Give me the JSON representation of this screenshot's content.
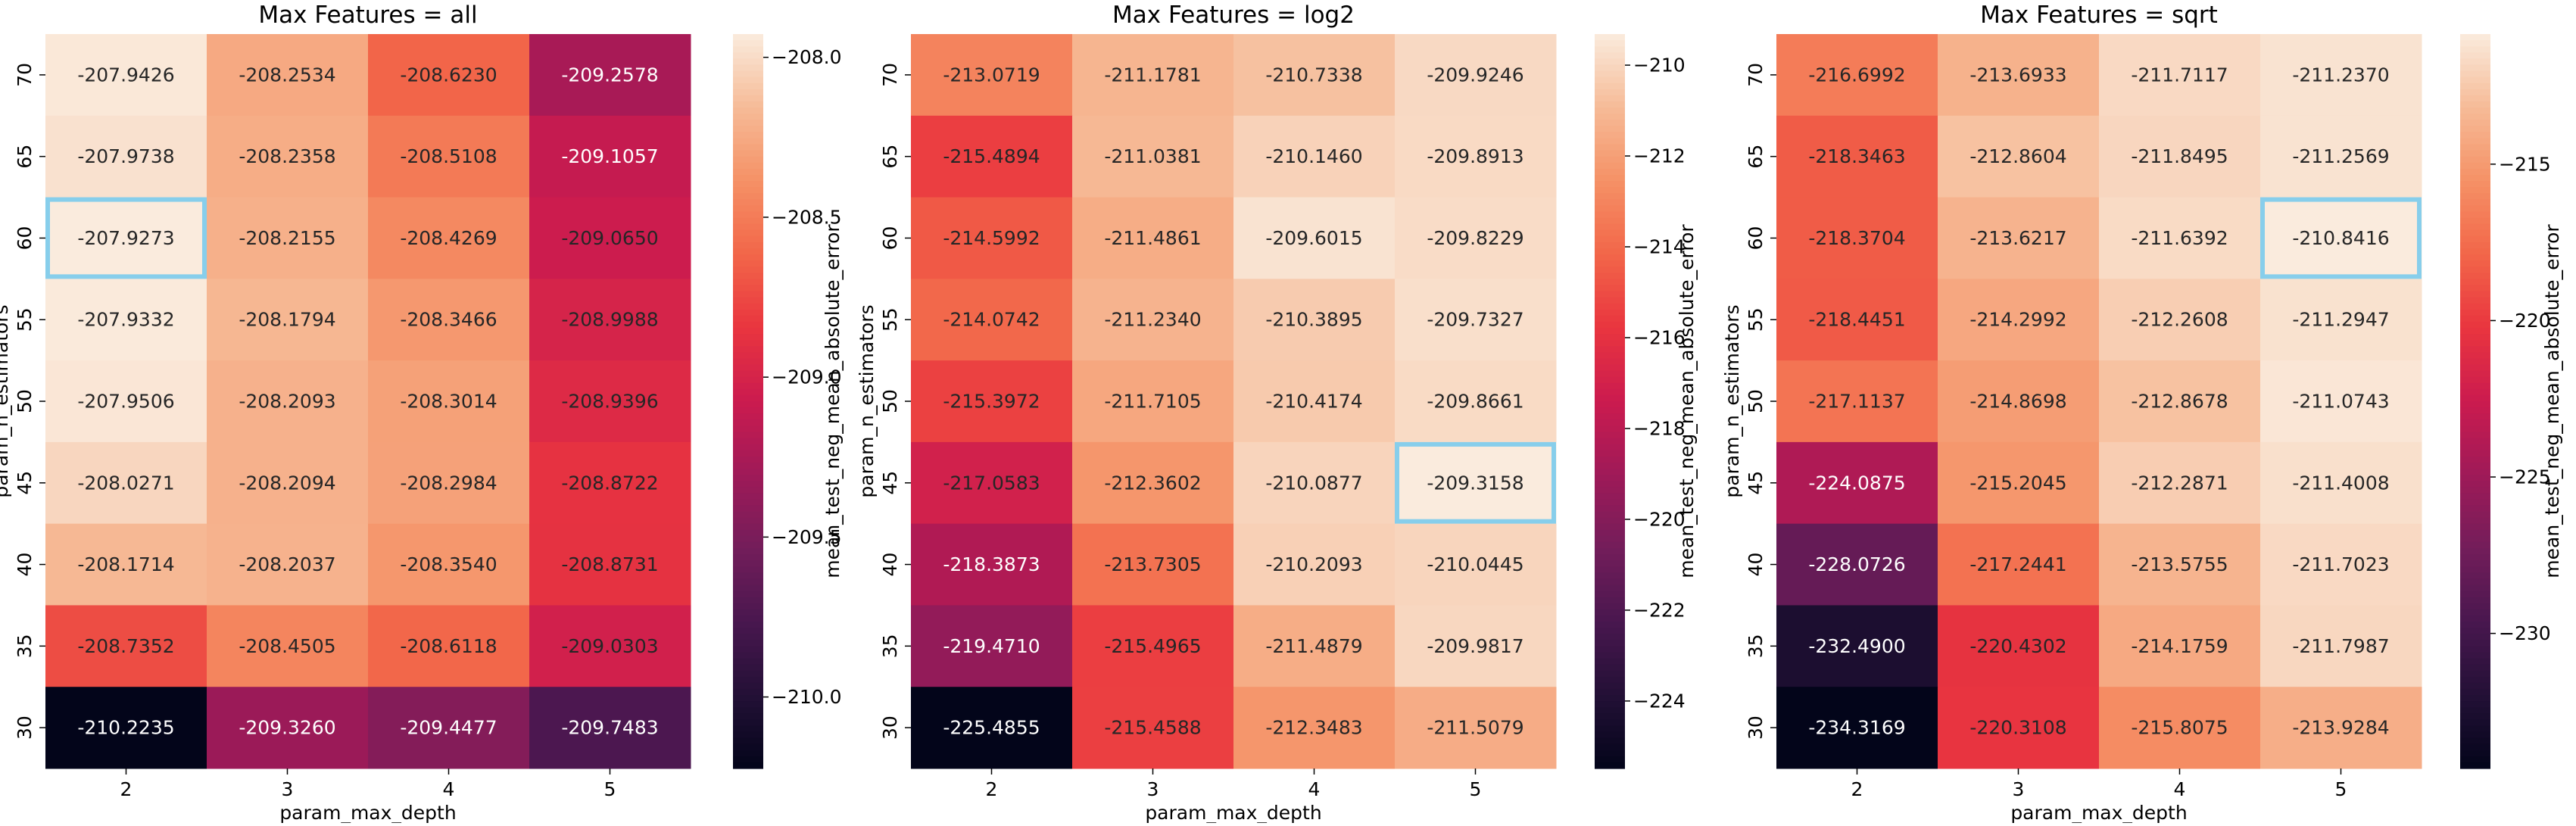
{
  "chart_data": [
    {
      "type": "heatmap",
      "title": "Max Features = all",
      "xlabel": "param_max_depth",
      "ylabel": "param_n_estimators",
      "colorbar_label": "mean_test_neg_mean_absolute_error",
      "x_categories": [
        "2",
        "3",
        "4",
        "5"
      ],
      "y_categories": [
        "70",
        "65",
        "60",
        "55",
        "50",
        "45",
        "40",
        "35",
        "30"
      ],
      "values": [
        [
          -207.9426,
          -208.2534,
          -208.623,
          -209.2578
        ],
        [
          -207.9738,
          -208.2358,
          -208.5108,
          -209.1057
        ],
        [
          -207.9273,
          -208.2155,
          -208.4269,
          -209.065
        ],
        [
          -207.9332,
          -208.1794,
          -208.3466,
          -208.9988
        ],
        [
          -207.9506,
          -208.2093,
          -208.3014,
          -208.9396
        ],
        [
          -208.0271,
          -208.2094,
          -208.2984,
          -208.8722
        ],
        [
          -208.1714,
          -208.2037,
          -208.354,
          -208.8731
        ],
        [
          -208.7352,
          -208.4505,
          -208.6118,
          -209.0303
        ],
        [
          -210.2235,
          -209.326,
          -209.4477,
          -209.7483
        ]
      ],
      "value_labels": [
        [
          "-207.9426",
          "-208.2534",
          "-208.6230",
          "-209.2578"
        ],
        [
          "-207.9738",
          "-208.2358",
          "-208.5108",
          "-209.1057"
        ],
        [
          "-207.9273",
          "-208.2155",
          "-208.4269",
          "-209.0650"
        ],
        [
          "-207.9332",
          "-208.1794",
          "-208.3466",
          "-208.9988"
        ],
        [
          "-207.9506",
          "-208.2093",
          "-208.3014",
          "-208.9396"
        ],
        [
          "-208.0271",
          "-208.2094",
          "-208.2984",
          "-208.8722"
        ],
        [
          "-208.1714",
          "-208.2037",
          "-208.3540",
          "-208.8731"
        ],
        [
          "-208.7352",
          "-208.4505",
          "-208.6118",
          "-209.0303"
        ],
        [
          "-210.2235",
          "-209.3260",
          "-209.4477",
          "-209.7483"
        ]
      ],
      "color_range": [
        -210.2235,
        -207.9273
      ],
      "colorbar_ticks": [
        -208.0,
        -208.5,
        -209.0,
        -209.5,
        -210.0
      ],
      "colorbar_tick_labels": [
        "−208.0",
        "−208.5",
        "−209.0",
        "−209.5",
        "−210.0"
      ],
      "highlight": {
        "row": 2,
        "col": 0,
        "color": "#87ceeb"
      }
    },
    {
      "type": "heatmap",
      "title": "Max Features = log2",
      "xlabel": "param_max_depth",
      "ylabel": "param_n_estimators",
      "colorbar_label": "mean_test_neg_mean_absolute_error",
      "x_categories": [
        "2",
        "3",
        "4",
        "5"
      ],
      "y_categories": [
        "70",
        "65",
        "60",
        "55",
        "50",
        "45",
        "40",
        "35",
        "30"
      ],
      "values": [
        [
          -213.0719,
          -211.1781,
          -210.7338,
          -209.9246
        ],
        [
          -215.4894,
          -211.0381,
          -210.146,
          -209.8913
        ],
        [
          -214.5992,
          -211.4861,
          -209.6015,
          -209.8229
        ],
        [
          -214.0742,
          -211.234,
          -210.3895,
          -209.7327
        ],
        [
          -215.3972,
          -211.7105,
          -210.4174,
          -209.8661
        ],
        [
          -217.0583,
          -212.3602,
          -210.0877,
          -209.3158
        ],
        [
          -218.3873,
          -213.7305,
          -210.2093,
          -210.0445
        ],
        [
          -219.471,
          -215.4965,
          -211.4879,
          -209.9817
        ],
        [
          -225.4855,
          -215.4588,
          -212.3483,
          -211.5079
        ]
      ],
      "value_labels": [
        [
          "-213.0719",
          "-211.1781",
          "-210.7338",
          "-209.9246"
        ],
        [
          "-215.4894",
          "-211.0381",
          "-210.1460",
          "-209.8913"
        ],
        [
          "-214.5992",
          "-211.4861",
          "-209.6015",
          "-209.8229"
        ],
        [
          "-214.0742",
          "-211.2340",
          "-210.3895",
          "-209.7327"
        ],
        [
          "-215.3972",
          "-211.7105",
          "-210.4174",
          "-209.8661"
        ],
        [
          "-217.0583",
          "-212.3602",
          "-210.0877",
          "-209.3158"
        ],
        [
          "-218.3873",
          "-213.7305",
          "-210.2093",
          "-210.0445"
        ],
        [
          "-219.4710",
          "-215.4965",
          "-211.4879",
          "-209.9817"
        ],
        [
          "-225.4855",
          "-215.4588",
          "-212.3483",
          "-211.5079"
        ]
      ],
      "color_range": [
        -225.4855,
        -209.3158
      ],
      "colorbar_ticks": [
        -210,
        -212,
        -214,
        -216,
        -218,
        -220,
        -222,
        -224
      ],
      "colorbar_tick_labels": [
        "−210",
        "−212",
        "−214",
        "−216",
        "−218",
        "−220",
        "−222",
        "−224"
      ],
      "highlight": {
        "row": 5,
        "col": 3,
        "color": "#87ceeb"
      }
    },
    {
      "type": "heatmap",
      "title": "Max Features = sqrt",
      "xlabel": "param_max_depth",
      "ylabel": "param_n_estimators",
      "colorbar_label": "mean_test_neg_mean_absolute_error",
      "x_categories": [
        "2",
        "3",
        "4",
        "5"
      ],
      "y_categories": [
        "70",
        "65",
        "60",
        "55",
        "50",
        "45",
        "40",
        "35",
        "30"
      ],
      "values": [
        [
          -216.6992,
          -213.6933,
          -211.7117,
          -211.237
        ],
        [
          -218.3463,
          -212.8604,
          -211.8495,
          -211.2569
        ],
        [
          -218.3704,
          -213.6217,
          -211.6392,
          -210.8416
        ],
        [
          -218.4451,
          -214.2992,
          -212.2608,
          -211.2947
        ],
        [
          -217.1137,
          -214.8698,
          -212.8678,
          -211.0743
        ],
        [
          -224.0875,
          -215.2045,
          -212.2871,
          -211.4008
        ],
        [
          -228.0726,
          -217.2441,
          -213.5755,
          -211.7023
        ],
        [
          -232.49,
          -220.4302,
          -214.1759,
          -211.7987
        ],
        [
          -234.3169,
          -220.3108,
          -215.8075,
          -213.9284
        ]
      ],
      "value_labels": [
        [
          "-216.6992",
          "-213.6933",
          "-211.7117",
          "-211.2370"
        ],
        [
          "-218.3463",
          "-212.8604",
          "-211.8495",
          "-211.2569"
        ],
        [
          "-218.3704",
          "-213.6217",
          "-211.6392",
          "-210.8416"
        ],
        [
          "-218.4451",
          "-214.2992",
          "-212.2608",
          "-211.2947"
        ],
        [
          "-217.1137",
          "-214.8698",
          "-212.8678",
          "-211.0743"
        ],
        [
          "-224.0875",
          "-215.2045",
          "-212.2871",
          "-211.4008"
        ],
        [
          "-228.0726",
          "-217.2441",
          "-213.5755",
          "-211.7023"
        ],
        [
          "-232.4900",
          "-220.4302",
          "-214.1759",
          "-211.7987"
        ],
        [
          "-234.3169",
          "-220.3108",
          "-215.8075",
          "-213.9284"
        ]
      ],
      "color_range": [
        -234.3169,
        -210.8416
      ],
      "colorbar_ticks": [
        -215,
        -220,
        -225,
        -230
      ],
      "colorbar_tick_labels": [
        "−215",
        "−220",
        "−225",
        "−230"
      ],
      "highlight": {
        "row": 2,
        "col": 3,
        "color": "#87ceeb"
      }
    }
  ]
}
